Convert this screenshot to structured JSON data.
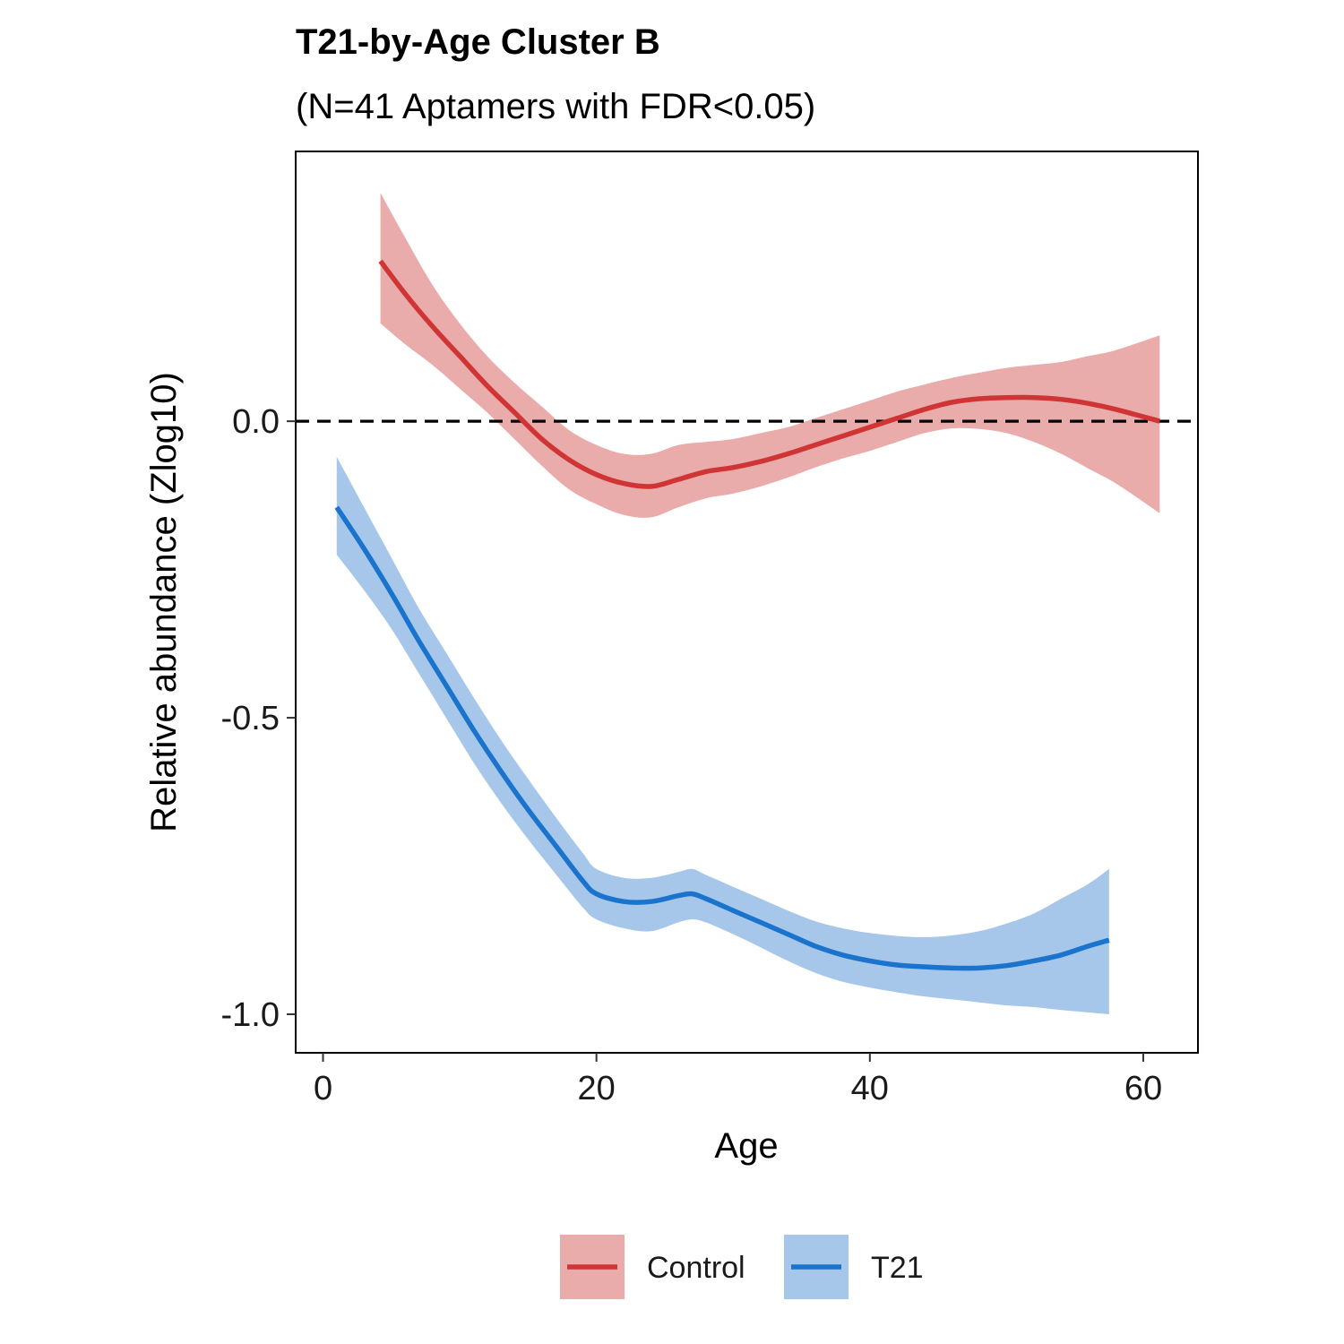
{
  "chart_data": {
    "type": "line",
    "title": "T21-by-Age Cluster B",
    "subtitle": "(N=41 Aptamers with FDR<0.05)",
    "xlabel": "Age",
    "ylabel": "Relative abundance (Zlog10)",
    "xlim": [
      -2,
      64
    ],
    "ylim": [
      -1.065,
      0.455
    ],
    "x_ticks": [
      0,
      20,
      40,
      60
    ],
    "x_tick_labels": [
      "0",
      "20",
      "40",
      "60"
    ],
    "y_ticks": [
      0.0,
      -0.5,
      -1.0
    ],
    "y_tick_labels": [
      "0.0",
      "-0.5",
      "-1.0"
    ],
    "reference_line": {
      "y": 0.0,
      "style": "dashed",
      "color": "#000000"
    },
    "grid": false,
    "legend_position": "bottom",
    "series": [
      {
        "name": "Control",
        "color": "#d03535",
        "fill": "#eaabab",
        "x": [
          4.2,
          6,
          8,
          10,
          12,
          14,
          16,
          18,
          20,
          22,
          24,
          26,
          28,
          30,
          32,
          34,
          36,
          38,
          40,
          42,
          44,
          46,
          48,
          50,
          52,
          54,
          56,
          58,
          61.2
        ],
        "y": [
          0.27,
          0.215,
          0.16,
          0.11,
          0.06,
          0.015,
          -0.03,
          -0.065,
          -0.09,
          -0.105,
          -0.11,
          -0.098,
          -0.085,
          -0.078,
          -0.068,
          -0.055,
          -0.04,
          -0.025,
          -0.01,
          0.005,
          0.02,
          0.032,
          0.038,
          0.04,
          0.04,
          0.037,
          0.03,
          0.02,
          0.0
        ],
        "lower": [
          0.165,
          0.13,
          0.095,
          0.055,
          0.015,
          -0.03,
          -0.075,
          -0.115,
          -0.14,
          -0.158,
          -0.162,
          -0.145,
          -0.13,
          -0.122,
          -0.11,
          -0.095,
          -0.078,
          -0.063,
          -0.05,
          -0.035,
          -0.02,
          -0.012,
          -0.013,
          -0.02,
          -0.035,
          -0.055,
          -0.08,
          -0.105,
          -0.155
        ],
        "upper": [
          0.385,
          0.31,
          0.23,
          0.165,
          0.11,
          0.065,
          0.025,
          -0.015,
          -0.04,
          -0.055,
          -0.055,
          -0.04,
          -0.035,
          -0.03,
          -0.02,
          -0.01,
          0.005,
          0.02,
          0.035,
          0.05,
          0.062,
          0.073,
          0.082,
          0.09,
          0.095,
          0.1,
          0.11,
          0.12,
          0.145
        ]
      },
      {
        "name": "T21",
        "color": "#1a73cc",
        "fill": "#a7c7ea",
        "x": [
          1,
          3,
          5,
          7,
          9,
          11,
          13,
          15,
          17,
          19,
          20,
          22,
          24,
          26,
          27,
          28,
          30,
          32,
          34,
          36,
          38,
          40,
          42,
          44,
          46,
          48,
          50,
          52,
          54,
          56,
          57.5
        ],
        "y": [
          -0.145,
          -0.215,
          -0.29,
          -0.37,
          -0.445,
          -0.52,
          -0.59,
          -0.655,
          -0.715,
          -0.775,
          -0.797,
          -0.81,
          -0.81,
          -0.8,
          -0.797,
          -0.805,
          -0.825,
          -0.845,
          -0.865,
          -0.885,
          -0.9,
          -0.91,
          -0.917,
          -0.92,
          -0.922,
          -0.922,
          -0.918,
          -0.91,
          -0.9,
          -0.885,
          -0.875
        ],
        "lower": [
          -0.225,
          -0.285,
          -0.35,
          -0.425,
          -0.5,
          -0.575,
          -0.643,
          -0.705,
          -0.763,
          -0.82,
          -0.84,
          -0.855,
          -0.86,
          -0.845,
          -0.84,
          -0.845,
          -0.865,
          -0.887,
          -0.91,
          -0.93,
          -0.945,
          -0.955,
          -0.963,
          -0.97,
          -0.975,
          -0.98,
          -0.985,
          -0.988,
          -0.993,
          -0.997,
          -1.0
        ],
        "upper": [
          -0.06,
          -0.145,
          -0.23,
          -0.315,
          -0.39,
          -0.465,
          -0.537,
          -0.603,
          -0.667,
          -0.728,
          -0.755,
          -0.77,
          -0.77,
          -0.76,
          -0.755,
          -0.765,
          -0.785,
          -0.805,
          -0.825,
          -0.843,
          -0.855,
          -0.863,
          -0.868,
          -0.87,
          -0.867,
          -0.86,
          -0.847,
          -0.83,
          -0.805,
          -0.78,
          -0.755
        ]
      }
    ]
  }
}
